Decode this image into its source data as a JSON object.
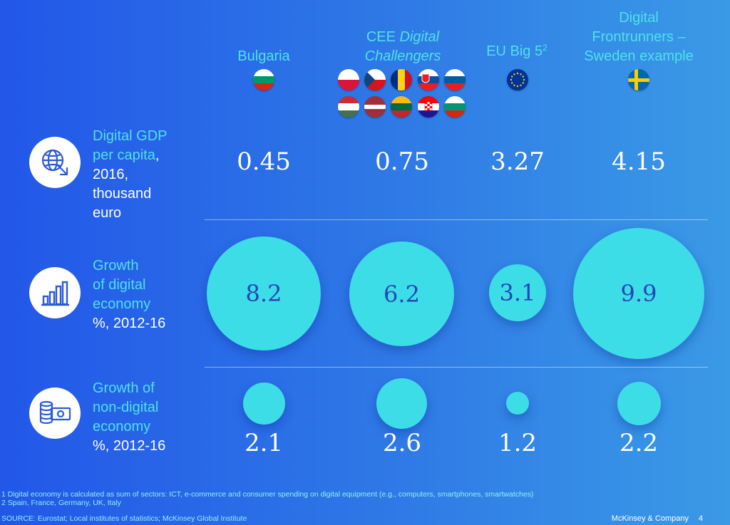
{
  "columns": {
    "bulgaria": "Bulgaria",
    "cee_line1": "CEE",
    "cee_line1_italic": "Digital",
    "cee_line2": "Challengers",
    "eu_big5": "EU Big 5",
    "eu_sup": "2",
    "frontrunners_line1": "Digital",
    "frontrunners_line2": "Frontrunners –",
    "frontrunners_line3": "Sweden example"
  },
  "rows": {
    "gdp": {
      "l1": "Digital GDP",
      "l2a": "per capita",
      "l2b": ",",
      "l3": "2016,",
      "l4": "thousand",
      "l5": "euro"
    },
    "growth_digital": {
      "l1": "Growth",
      "l2": "of digital",
      "l3": "economy",
      "l4": "%, 2012-16"
    },
    "growth_nondigital": {
      "l1": "Growth of",
      "l2": "non-digital",
      "l3": "economy",
      "l4": "%, 2012-16"
    }
  },
  "icons": {
    "gdp": "globe-cursor-icon",
    "growth_digital": "bar-chart-icon",
    "growth_nondigital": "coins-banknote-icon"
  },
  "colors": {
    "accent": "#4fe0ea",
    "bubble": "#3ddde7",
    "bubble_text": "#2346b8"
  },
  "chart_data": {
    "type": "bubble-table",
    "categories": [
      "Bulgaria",
      "CEE Digital Challengers",
      "EU Big 5",
      "Digital Frontrunners – Sweden example"
    ],
    "series": [
      {
        "name": "Digital GDP per capita, 2016, thousand euro",
        "values": [
          0.45,
          0.75,
          3.27,
          4.15
        ],
        "display": [
          "0.45",
          "0.75",
          "3.27",
          "4.15"
        ]
      },
      {
        "name": "Growth of digital economy %, 2012-16",
        "values": [
          8.2,
          6.2,
          3.1,
          9.9
        ],
        "display": [
          "8.2",
          "6.2",
          "3.1",
          "9.9"
        ]
      },
      {
        "name": "Growth of non-digital economy %, 2012-16",
        "values": [
          2.1,
          2.6,
          1.2,
          2.2
        ],
        "display": [
          "2.1",
          "2.6",
          "1.2",
          "2.2"
        ]
      }
    ]
  },
  "footnotes": {
    "f1": "1 Digital economy is calculated as sum of sectors: ICT, e-commerce and consumer spending on digital equipment (e.g., computers, smartphones, smartwatches)",
    "f2": "2 Spain, France, Germany, UK, Italy",
    "source": "SOURCE: Eurostat; Local institutes of statistics; McKinsey Global Institute"
  },
  "footer": {
    "company": "McKinsey & Company",
    "page": "4"
  }
}
